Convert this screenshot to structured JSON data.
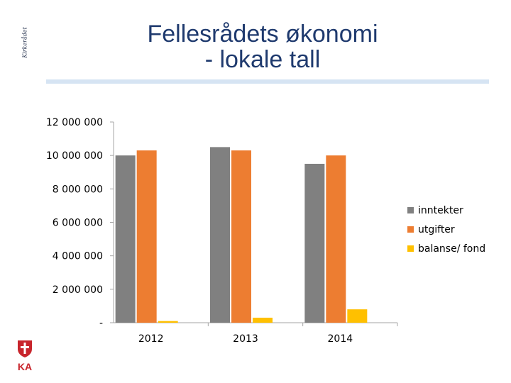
{
  "slide": {
    "side_note": "Kirkerådet",
    "title_line1": "Fellesrådets økonomi",
    "title_line2": "- lokale tall"
  },
  "logo": {
    "text": "KA"
  },
  "chart_data": {
    "type": "bar",
    "title": "",
    "categories": [
      "2012",
      "2013",
      "2014"
    ],
    "ylim": [
      0,
      12000000
    ],
    "yticks": [
      0,
      2000000,
      4000000,
      6000000,
      8000000,
      10000000,
      12000000
    ],
    "ytick_labels": [
      "-",
      "2 000 000",
      "4 000 000",
      "6 000 000",
      "8 000 000",
      "10 000 000",
      "12 000 000"
    ],
    "grid": false,
    "legend_position": "right",
    "series": [
      {
        "name": "inntekter",
        "color": "#808080",
        "values": [
          10000000,
          10500000,
          9500000
        ]
      },
      {
        "name": "utgifter",
        "color": "#ed7d31",
        "values": [
          10300000,
          10300000,
          10000000
        ]
      },
      {
        "name": "balanse/ fond",
        "color": "#ffc000",
        "values": [
          100000,
          300000,
          800000
        ]
      }
    ]
  }
}
